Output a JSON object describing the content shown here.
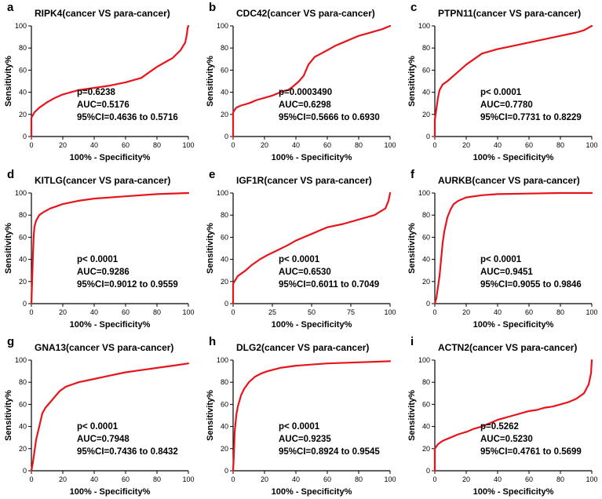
{
  "chart_data": [
    {
      "type": "line",
      "panel": "a",
      "title": "RIPK4(cancer VS para-cancer)",
      "xlabel": "100% - Specificity%",
      "ylabel": "Sensitivity%",
      "xlim": [
        0,
        100
      ],
      "ylim": [
        0,
        100
      ],
      "xticks": [
        "0",
        "20",
        "40",
        "60",
        "80",
        "100"
      ],
      "yticks": [
        "0",
        "20",
        "40",
        "60",
        "80",
        "100"
      ],
      "annotations": [
        "p=0.6238",
        "AUC=0.5176",
        "95%CI=0.4636 to 0.5716"
      ],
      "series": [
        {
          "color": "#e8141b",
          "x": [
            0,
            0,
            2,
            5,
            10,
            15,
            20,
            30,
            40,
            50,
            60,
            70,
            75,
            80,
            85,
            90,
            95,
            98,
            99,
            99.5,
            100
          ],
          "y": [
            0,
            17,
            22,
            26,
            31,
            35,
            38,
            42,
            44,
            46,
            49,
            53,
            58,
            63,
            67,
            71,
            78,
            85,
            92,
            98,
            100
          ]
        }
      ]
    },
    {
      "type": "line",
      "panel": "b",
      "title": "CDC42(cancer VS para-cancer)",
      "xlabel": "100% - Specificity%",
      "ylabel": "Sensitivity%",
      "xlim": [
        0,
        100
      ],
      "ylim": [
        0,
        100
      ],
      "xticks": [
        "0",
        "20",
        "40",
        "60",
        "80",
        "100"
      ],
      "yticks": [
        "0",
        "20",
        "40",
        "60",
        "80",
        "100"
      ],
      "annotations": [
        "p=0.0003490",
        "AUC=0.6298",
        "95%CI=0.5666 to 0.6930"
      ],
      "series": [
        {
          "color": "#e8141b",
          "x": [
            0,
            0,
            2,
            5,
            10,
            15,
            20,
            25,
            30,
            35,
            38,
            42,
            45,
            48,
            52,
            56,
            60,
            65,
            70,
            75,
            80,
            85,
            90,
            95,
            100
          ],
          "y": [
            0,
            22,
            26,
            28,
            30,
            33,
            35,
            37,
            40,
            42,
            45,
            50,
            55,
            65,
            72,
            75,
            78,
            82,
            85,
            88,
            91,
            93,
            95,
            97,
            100
          ]
        }
      ]
    },
    {
      "type": "line",
      "panel": "c",
      "title": "PTPN11(cancer VS para-cancer)",
      "xlabel": "100% - Specificity%",
      "ylabel": "Sensitivity%",
      "xlim": [
        0,
        100
      ],
      "ylim": [
        0,
        100
      ],
      "xticks": [
        "0",
        "20",
        "40",
        "60",
        "80",
        "100"
      ],
      "yticks": [
        "0",
        "20",
        "40",
        "60",
        "80",
        "100"
      ],
      "annotations": [
        "p< 0.0001",
        "AUC=0.7780",
        "95%CI=0.7731 to 0.8229"
      ],
      "series": [
        {
          "color": "#e8141b",
          "x": [
            0,
            0,
            1,
            2,
            3,
            5,
            8,
            12,
            16,
            20,
            25,
            30,
            40,
            50,
            60,
            70,
            80,
            90,
            95,
            100
          ],
          "y": [
            0,
            15,
            25,
            35,
            42,
            47,
            50,
            55,
            60,
            65,
            70,
            75,
            79,
            82,
            85,
            88,
            91,
            94,
            96,
            100
          ]
        }
      ]
    },
    {
      "type": "line",
      "panel": "d",
      "title": "KITLG(cancer VS para-cancer)",
      "xlabel": "100% - Specificity%",
      "ylabel": "Sensitivity%",
      "xlim": [
        0,
        100
      ],
      "ylim": [
        0,
        100
      ],
      "xticks": [
        "0",
        "20",
        "40",
        "60",
        "80",
        "100"
      ],
      "yticks": [
        "0",
        "20",
        "40",
        "60",
        "80",
        "100"
      ],
      "annotations": [
        "p< 0.0001",
        "AUC=0.9286",
        "95%CI=0.9012 to 0.9559"
      ],
      "series": [
        {
          "color": "#e8141b",
          "x": [
            0,
            0.5,
            1,
            1.5,
            2,
            3,
            5,
            8,
            12,
            16,
            20,
            30,
            40,
            60,
            80,
            100
          ],
          "y": [
            0,
            22,
            45,
            62,
            70,
            75,
            80,
            83,
            86,
            88,
            90,
            93,
            95,
            97,
            99,
            100
          ]
        }
      ]
    },
    {
      "type": "line",
      "panel": "e",
      "title": "IGF1R(cancer VS para-cancer)",
      "xlabel": "100% - Specificity%",
      "ylabel": "Sensitivity%",
      "xlim": [
        0,
        100
      ],
      "ylim": [
        0,
        100
      ],
      "xticks": [
        "0",
        "25",
        "50",
        "75",
        "100"
      ],
      "yticks": [
        "0",
        "20",
        "40",
        "60",
        "80",
        "100"
      ],
      "annotations": [
        "p< 0.0001",
        "AUC=0.6530",
        "95%CI=0.6011 to 0.7049"
      ],
      "series": [
        {
          "color": "#e8141b",
          "x": [
            0,
            0,
            3,
            8,
            12,
            17,
            22,
            28,
            35,
            40,
            45,
            50,
            55,
            60,
            70,
            80,
            90,
            97,
            99,
            100
          ],
          "y": [
            0,
            18,
            25,
            30,
            35,
            40,
            44,
            48,
            53,
            57,
            60,
            63,
            66,
            69,
            72,
            76,
            80,
            86,
            93,
            100
          ]
        }
      ]
    },
    {
      "type": "line",
      "panel": "f",
      "title": "AURKB(cancer VS para-cancer)",
      "xlabel": "100% - Specificity%",
      "ylabel": "Sensitivity%",
      "xlim": [
        0,
        100
      ],
      "ylim": [
        0,
        100
      ],
      "xticks": [
        "0",
        "20",
        "40",
        "60",
        "80",
        "100"
      ],
      "yticks": [
        "0",
        "20",
        "40",
        "60",
        "80",
        "100"
      ],
      "annotations": [
        "p< 0.0001",
        "AUC=0.9451",
        "95%CI=0.9055 to 0.9846"
      ],
      "series": [
        {
          "color": "#e8141b",
          "x": [
            0,
            1,
            2,
            3,
            4,
            5,
            6,
            8,
            10,
            12,
            15,
            20,
            30,
            40,
            60,
            80,
            100
          ],
          "y": [
            0,
            5,
            15,
            25,
            40,
            55,
            65,
            78,
            85,
            90,
            93,
            96,
            98,
            99,
            99.5,
            100,
            100
          ]
        }
      ]
    },
    {
      "type": "line",
      "panel": "g",
      "title": "GNA13(cancer VS para-cancer)",
      "xlabel": "100% - Specificity%",
      "ylabel": "Sensitivity%",
      "xlim": [
        0,
        100
      ],
      "ylim": [
        0,
        100
      ],
      "xticks": [
        "0",
        "20",
        "40",
        "60",
        "80",
        "100"
      ],
      "yticks": [
        "0",
        "20",
        "40",
        "60",
        "80",
        "100"
      ],
      "annotations": [
        "p< 0.0001",
        "AUC=0.7948",
        "95%CI=0.7436 to 0.8432"
      ],
      "series": [
        {
          "color": "#e8141b",
          "x": [
            0,
            1,
            2,
            3,
            5,
            7,
            9,
            12,
            15,
            18,
            22,
            26,
            30,
            40,
            50,
            60,
            70,
            80,
            90,
            100
          ],
          "y": [
            0,
            8,
            18,
            28,
            40,
            52,
            57,
            62,
            67,
            72,
            76,
            78,
            80,
            83,
            86,
            89,
            91,
            93,
            95,
            97
          ]
        }
      ]
    },
    {
      "type": "line",
      "panel": "h",
      "title": "DLG2(cancer VS para-cancer)",
      "xlabel": "100% - Specificity%",
      "ylabel": "Sensitivity%",
      "xlim": [
        0,
        100
      ],
      "ylim": [
        0,
        100
      ],
      "xticks": [
        "0",
        "20",
        "40",
        "60",
        "80",
        "100"
      ],
      "yticks": [
        "0",
        "20",
        "40",
        "60",
        "80",
        "100"
      ],
      "annotations": [
        "p< 0.0001",
        "AUC=0.9235",
        "95%CI=0.8924 to 0.9545"
      ],
      "series": [
        {
          "color": "#e8141b",
          "x": [
            0,
            0.5,
            1,
            2,
            3,
            4,
            5,
            7,
            10,
            14,
            18,
            22,
            30,
            40,
            60,
            80,
            100
          ],
          "y": [
            0,
            15,
            35,
            50,
            58,
            63,
            68,
            74,
            80,
            85,
            88,
            90,
            93,
            95,
            97,
            98,
            99
          ]
        }
      ]
    },
    {
      "type": "line",
      "panel": "i",
      "title": "ACTN2(cancer VS para-cancer)",
      "xlabel": "100% - Specificity%",
      "ylabel": "Sensitivity%",
      "xlim": [
        0,
        100
      ],
      "ylim": [
        0,
        100
      ],
      "xticks": [
        "0",
        "20",
        "40",
        "60",
        "80",
        "100"
      ],
      "yticks": [
        "0",
        "20",
        "40",
        "60",
        "80",
        "100"
      ],
      "annotations": [
        "p=0.5262",
        "AUC=0.5230",
        "95%CI=0.4761 to 0.5699"
      ],
      "series": [
        {
          "color": "#e8141b",
          "x": [
            0,
            0,
            2,
            5,
            10,
            15,
            20,
            25,
            30,
            35,
            40,
            45,
            50,
            55,
            60,
            65,
            70,
            75,
            80,
            85,
            90,
            95,
            98,
            99.5,
            100
          ],
          "y": [
            0,
            20,
            24,
            27,
            30,
            33,
            35,
            38,
            40,
            43,
            46,
            48,
            50,
            52,
            54,
            55,
            57,
            58,
            60,
            62,
            65,
            70,
            78,
            88,
            100
          ]
        }
      ]
    }
  ]
}
